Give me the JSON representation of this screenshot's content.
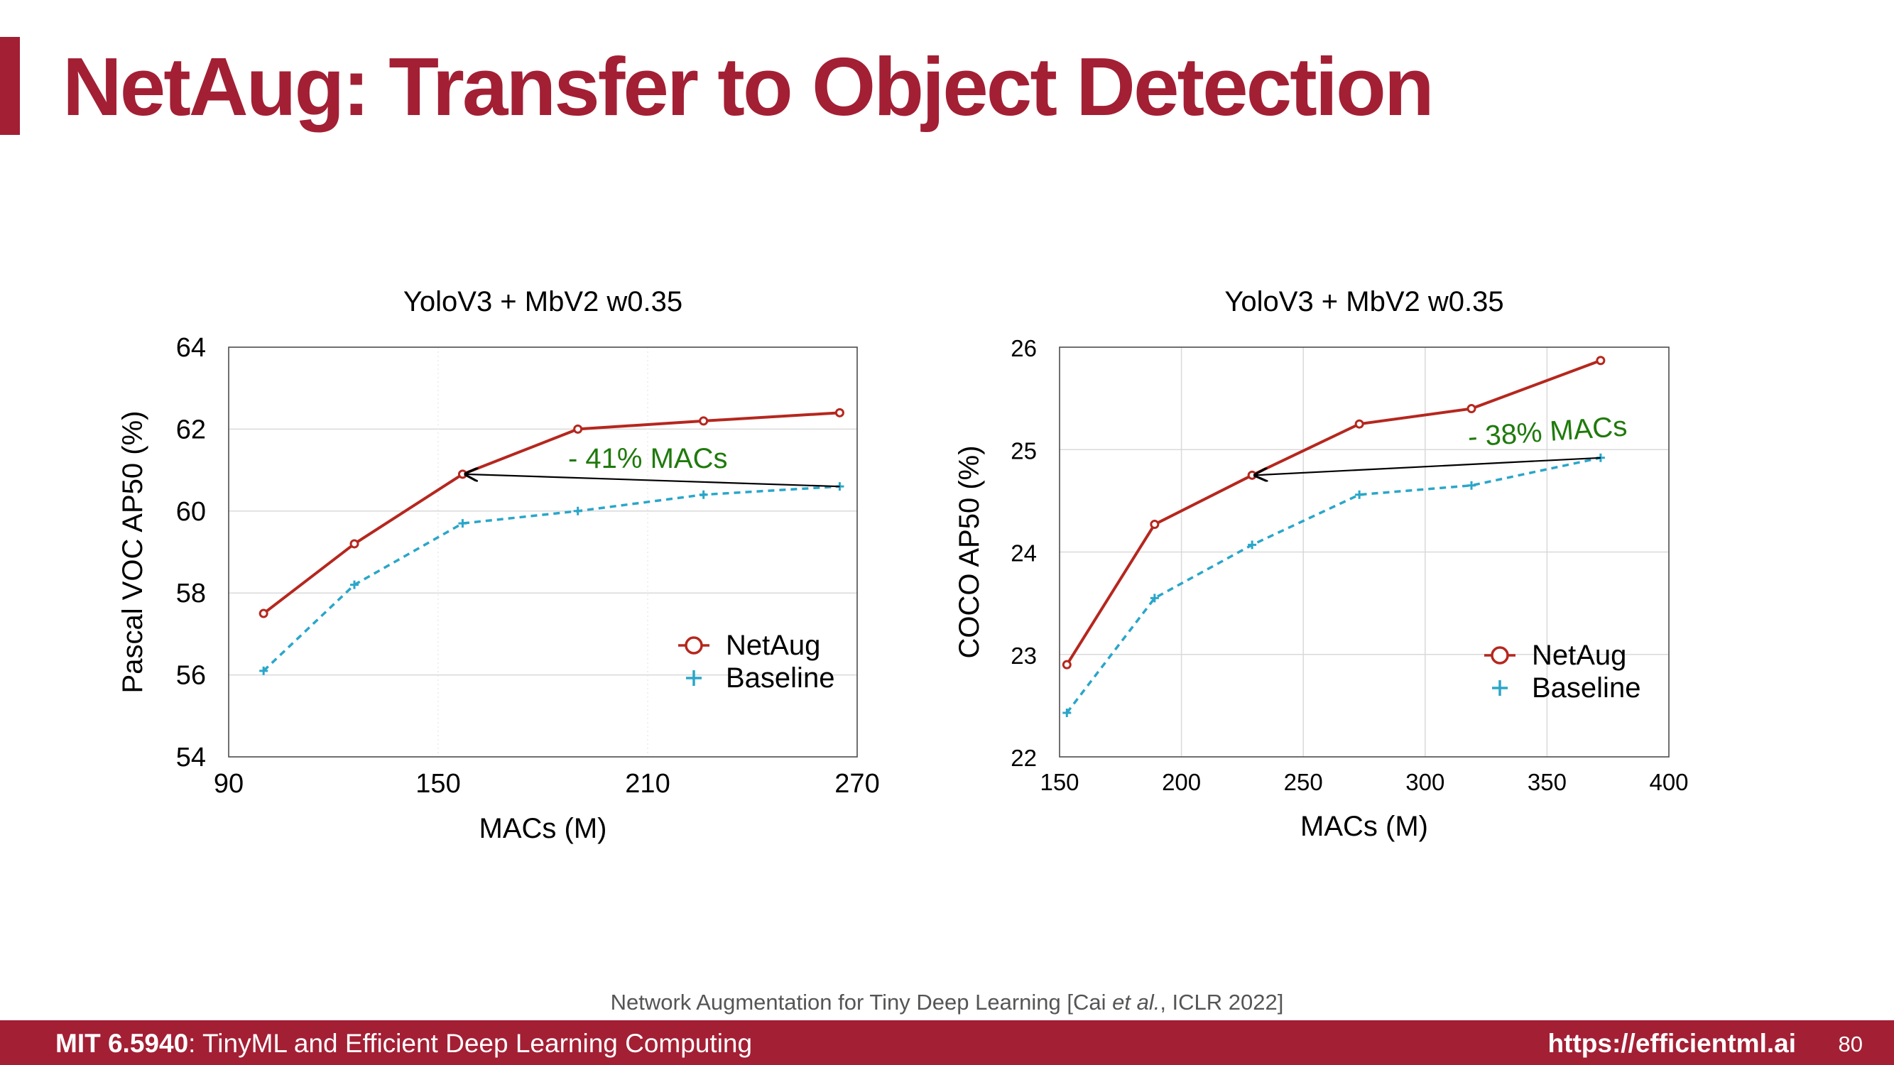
{
  "slide": {
    "title": "NetAug: Transfer to Object Detection",
    "citation_prefix": "Network Augmentation for Tiny Deep Learning [Cai ",
    "citation_italic": "et al.",
    "citation_suffix": ", ICLR 2022]",
    "footer_course_bold": "MIT 6.5940",
    "footer_course_rest": ": TinyML and Efficient Deep Learning Computing",
    "footer_url": "https://efficientml.ai",
    "page_number": "80",
    "accent_color": "#a31f34"
  },
  "chart_data": [
    {
      "type": "line",
      "title": "YoloV3 + MbV2 w0.35",
      "xlabel": "MACs (M)",
      "ylabel": "Pascal VOC AP50 (%)",
      "xlim": [
        90,
        270
      ],
      "ylim": [
        54,
        64
      ],
      "xticks": [
        90,
        150,
        210,
        270
      ],
      "yticks": [
        54,
        56,
        58,
        60,
        62,
        64
      ],
      "grid": true,
      "legend_position": "bottom-right",
      "series": [
        {
          "name": "NetAug",
          "color": "#b5271e",
          "marker": "circle",
          "line": "solid",
          "x": [
            100,
            126,
            157,
            190,
            226,
            265
          ],
          "y": [
            57.5,
            59.2,
            60.9,
            62.0,
            62.2,
            62.4
          ]
        },
        {
          "name": "Baseline",
          "color": "#2aa6c9",
          "marker": "plus",
          "line": "dashed",
          "x": [
            100,
            126,
            157,
            190,
            226,
            265
          ],
          "y": [
            56.1,
            58.2,
            59.7,
            60.0,
            60.4,
            60.6
          ]
        }
      ],
      "annotation": {
        "text": "- 41% MACs",
        "color": "#1f7a0c",
        "arrow_from": [
          265,
          60.6
        ],
        "arrow_to": [
          157,
          60.9
        ]
      }
    },
    {
      "type": "line",
      "title": "YoloV3 + MbV2 w0.35",
      "xlabel": "MACs (M)",
      "ylabel": "COCO AP50 (%)",
      "xlim": [
        150,
        400
      ],
      "ylim": [
        22,
        26
      ],
      "xticks": [
        150,
        200,
        250,
        300,
        350,
        400
      ],
      "yticks": [
        22,
        23,
        24,
        25,
        26
      ],
      "grid": true,
      "legend_position": "bottom-right",
      "series": [
        {
          "name": "NetAug",
          "color": "#b5271e",
          "marker": "circle",
          "line": "solid",
          "x": [
            153,
            189,
            229,
            273,
            319,
            372
          ],
          "y": [
            22.9,
            24.27,
            24.75,
            25.25,
            25.4,
            25.87
          ]
        },
        {
          "name": "Baseline",
          "color": "#2aa6c9",
          "marker": "plus",
          "line": "dashed",
          "x": [
            153,
            189,
            229,
            273,
            319,
            372
          ],
          "y": [
            22.43,
            23.55,
            24.07,
            24.56,
            24.65,
            24.92
          ]
        }
      ],
      "annotation": {
        "text": "- 38% MACs",
        "color": "#1f7a0c",
        "arrow_from": [
          372,
          24.92
        ],
        "arrow_to": [
          229,
          24.75
        ]
      }
    }
  ]
}
